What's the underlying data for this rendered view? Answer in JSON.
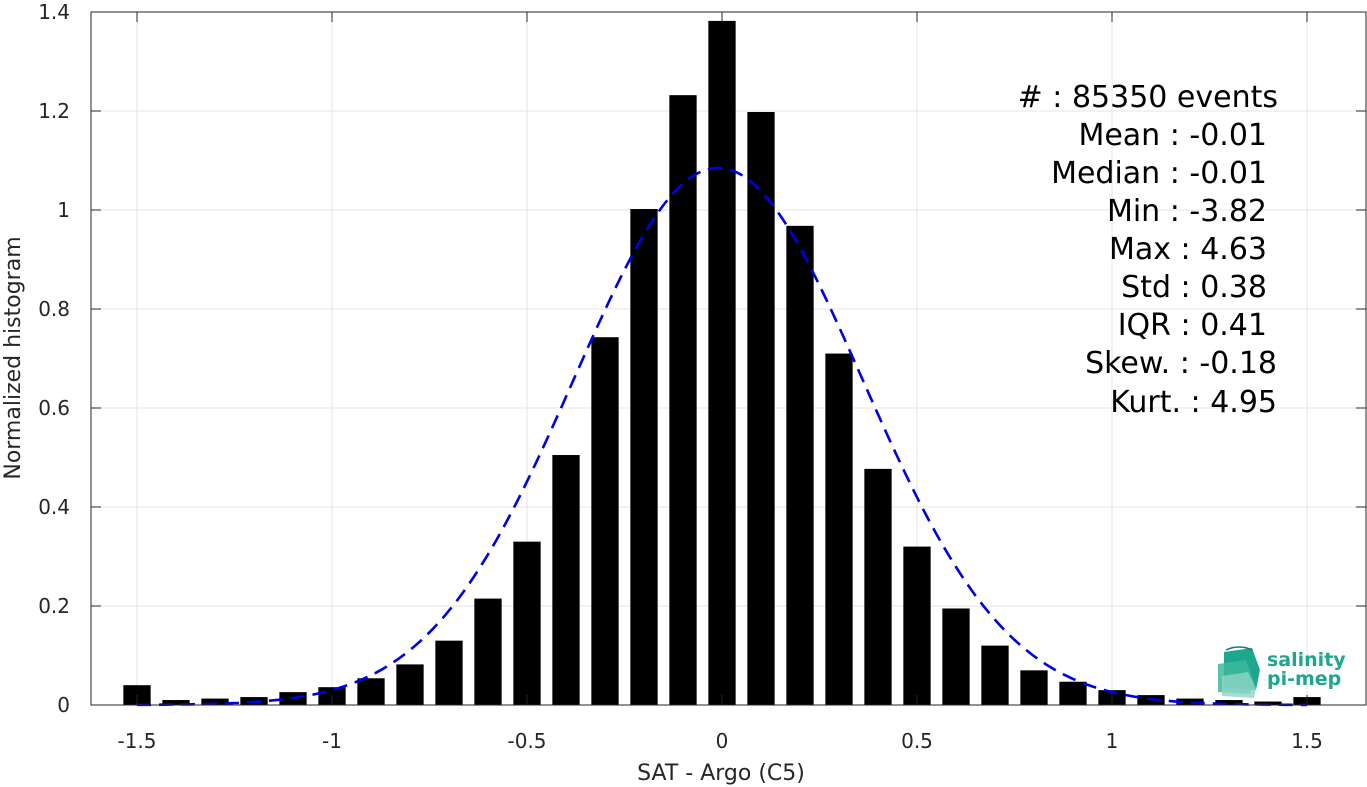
{
  "chart_data": {
    "type": "bar",
    "xlabel": "SAT - Argo (C5)",
    "ylabel": "Normalized histogram",
    "xlim": [
      -1.6,
      1.6
    ],
    "ylim": [
      0,
      1.4
    ],
    "xticks": [
      -1.5,
      -1,
      -0.5,
      0,
      0.5,
      1,
      1.5
    ],
    "xtick_labels": [
      "-1.5",
      "-1",
      "-0.5",
      "0",
      "0.5",
      "1",
      "1.5"
    ],
    "yticks": [
      0,
      0.2,
      0.4,
      0.6,
      0.8,
      1,
      1.2,
      1.4
    ],
    "ytick_labels": [
      "0",
      "0.2",
      "0.4",
      "0.6",
      "0.8",
      "1",
      "1.2",
      "1.4"
    ],
    "grid": true,
    "bar_color": "#000000",
    "bar_width": 0.07,
    "histogram": {
      "x": [
        -1.5,
        -1.4,
        -1.3,
        -1.2,
        -1.1,
        -1.0,
        -0.9,
        -0.8,
        -0.7,
        -0.6,
        -0.5,
        -0.4,
        -0.3,
        -0.2,
        -0.1,
        0.0,
        0.1,
        0.2,
        0.3,
        0.4,
        0.5,
        0.6,
        0.7,
        0.8,
        0.9,
        1.0,
        1.1,
        1.2,
        1.3,
        1.4,
        1.5
      ],
      "values": [
        0.04,
        0.01,
        0.013,
        0.016,
        0.026,
        0.036,
        0.054,
        0.082,
        0.13,
        0.215,
        0.33,
        0.505,
        0.743,
        1.002,
        1.232,
        1.382,
        1.198,
        0.968,
        0.71,
        0.477,
        0.32,
        0.195,
        0.12,
        0.07,
        0.047,
        0.03,
        0.02,
        0.013,
        0.01,
        0.007,
        0.016
      ]
    },
    "fit": {
      "name": "Gaussian fit",
      "style": "dashed",
      "color": "#0000e6",
      "mean": -0.01,
      "std": 0.37,
      "peak": 1.085,
      "x_range": [
        -1.5,
        1.5
      ]
    },
    "stats": [
      {
        "label": "#  : 85350 events"
      },
      {
        "label": "Mean : -0.01"
      },
      {
        "label": "Median : -0.01"
      },
      {
        "label": "Min : -3.82"
      },
      {
        "label": "Max : 4.63"
      },
      {
        "label": "Std : 0.38"
      },
      {
        "label": "IQR : 0.41"
      },
      {
        "label": "Skew. : -0.18"
      },
      {
        "label": "Kurt. : 4.95"
      }
    ]
  },
  "logo": {
    "line1": "salinity",
    "line2": "pi-mep",
    "color": "#1fa68e"
  }
}
